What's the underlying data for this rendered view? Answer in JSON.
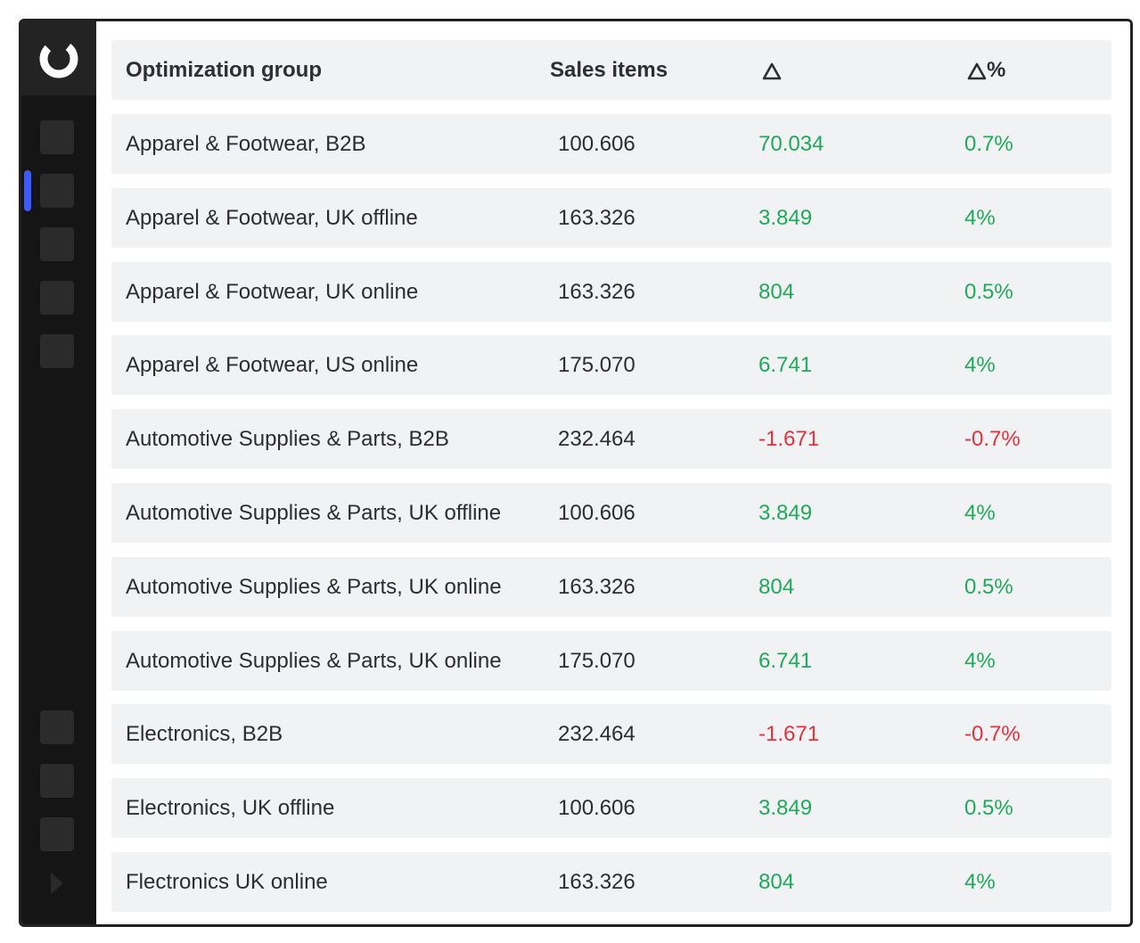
{
  "table": {
    "headers": {
      "group": "Optimization group",
      "sales": "Sales items",
      "delta_pct_suffix": "%"
    },
    "rows": [
      {
        "group": "Apparel & Footwear, B2B",
        "sales": "100.606",
        "delta": "70.034",
        "delta_pct": "0.7%",
        "trend": "positive"
      },
      {
        "group": "Apparel & Footwear, UK offline",
        "sales": "163.326",
        "delta": "3.849",
        "delta_pct": "4%",
        "trend": "positive"
      },
      {
        "group": "Apparel & Footwear, UK online",
        "sales": "163.326",
        "delta": "804",
        "delta_pct": "0.5%",
        "trend": "positive"
      },
      {
        "group": "Apparel & Footwear, US online",
        "sales": "175.070",
        "delta": "6.741",
        "delta_pct": "4%",
        "trend": "positive"
      },
      {
        "group": "Automotive Supplies & Parts, B2B",
        "sales": "232.464",
        "delta": "-1.671",
        "delta_pct": "-0.7%",
        "trend": "negative"
      },
      {
        "group": "Automotive Supplies & Parts, UK offline",
        "sales": "100.606",
        "delta": "3.849",
        "delta_pct": "4%",
        "trend": "positive"
      },
      {
        "group": "Automotive Supplies & Parts, UK online",
        "sales": "163.326",
        "delta": "804",
        "delta_pct": "0.5%",
        "trend": "positive"
      },
      {
        "group": "Automotive Supplies & Parts, UK online",
        "sales": "175.070",
        "delta": "6.741",
        "delta_pct": "4%",
        "trend": "positive"
      },
      {
        "group": "Electronics, B2B",
        "sales": "232.464",
        "delta": "-1.671",
        "delta_pct": "-0.7%",
        "trend": "negative"
      },
      {
        "group": "Electronics, UK offline",
        "sales": "100.606",
        "delta": "3.849",
        "delta_pct": "0.5%",
        "trend": "positive"
      },
      {
        "group": "Flectronics UK online",
        "sales": "163.326",
        "delta": "804",
        "delta_pct": "4%",
        "trend": "positive"
      }
    ]
  },
  "sidebar": {
    "logo_icon": "ring-logo-icon",
    "nav_icons": [
      "nav-item-1",
      "nav-item-2",
      "nav-item-3",
      "nav-item-4",
      "nav-item-5",
      "nav-item-6",
      "nav-item-7",
      "nav-item-8"
    ],
    "active_index": 1,
    "expand_icon": "expand-arrow-icon"
  },
  "colors": {
    "positive": "#1faa59",
    "negative": "#e5313b",
    "active_indicator": "#3b5bff",
    "sidebar_bg": "#151515",
    "row_bg": "#f1f2f4"
  }
}
